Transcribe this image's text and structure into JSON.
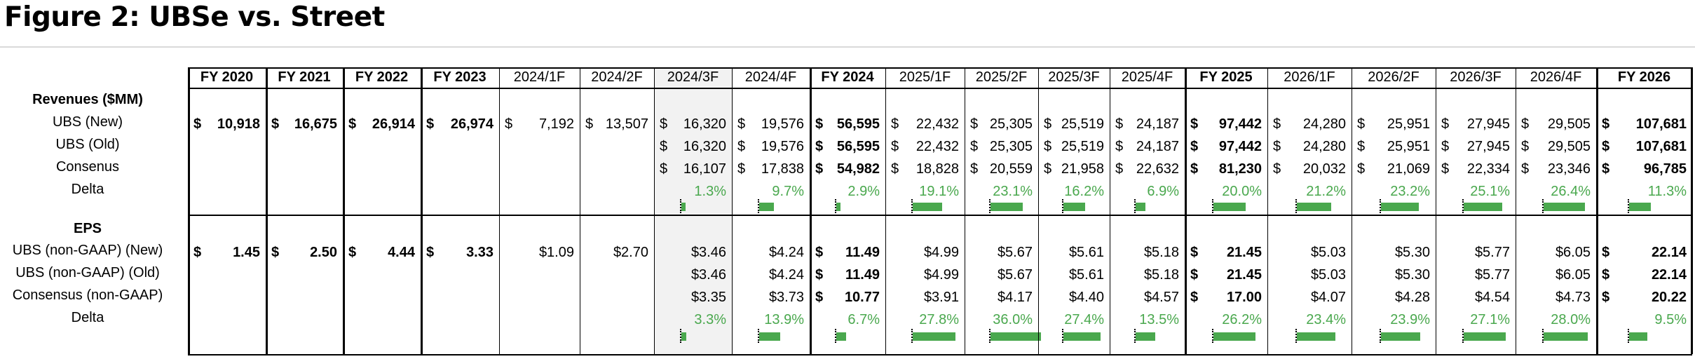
{
  "title": "Figure 2: UBSe vs. Street",
  "columns": [
    {
      "label": "FY 2020",
      "fy": true
    },
    {
      "label": "FY 2021",
      "fy": true
    },
    {
      "label": "FY 2022",
      "fy": true
    },
    {
      "label": "FY 2023",
      "fy": true
    },
    {
      "label": "2024/1F",
      "fy": false
    },
    {
      "label": "2024/2F",
      "fy": false
    },
    {
      "label": "2024/3F",
      "fy": false
    },
    {
      "label": "2024/4F",
      "fy": false
    },
    {
      "label": "FY 2024",
      "fy": true
    },
    {
      "label": "2025/1F",
      "fy": false
    },
    {
      "label": "2025/2F",
      "fy": false
    },
    {
      "label": "2025/3F",
      "fy": false
    },
    {
      "label": "2025/4F",
      "fy": false
    },
    {
      "label": "FY 2025",
      "fy": true
    },
    {
      "label": "2026/1F",
      "fy": false
    },
    {
      "label": "2026/2F",
      "fy": false
    },
    {
      "label": "2026/3F",
      "fy": false
    },
    {
      "label": "2026/4F",
      "fy": false
    },
    {
      "label": "FY 2026",
      "fy": true
    }
  ],
  "revenues": {
    "section_label": "Revenues ($MM)",
    "currency": "$",
    "rows": [
      {
        "label": "UBS (New)",
        "values": [
          "10,918",
          "16,675",
          "26,914",
          "26,974",
          "7,192",
          "13,507",
          "16,320",
          "19,576",
          "56,595",
          "22,432",
          "25,305",
          "25,519",
          "24,187",
          "97,442",
          "24,280",
          "25,951",
          "27,945",
          "29,505",
          "107,681"
        ]
      },
      {
        "label": "UBS (Old)",
        "values": [
          "",
          "",
          "",
          "",
          "",
          "",
          "16,320",
          "19,576",
          "56,595",
          "22,432",
          "25,305",
          "25,519",
          "24,187",
          "97,442",
          "24,280",
          "25,951",
          "27,945",
          "29,505",
          "107,681"
        ]
      },
      {
        "label": "Consenus",
        "values": [
          "",
          "",
          "",
          "",
          "",
          "",
          "16,107",
          "17,838",
          "54,982",
          "18,828",
          "20,559",
          "21,958",
          "22,632",
          "81,230",
          "20,032",
          "21,069",
          "22,334",
          "23,346",
          "96,785"
        ]
      }
    ],
    "delta": {
      "label": "Delta",
      "values": [
        "",
        "",
        "",
        "",
        "",
        "",
        "1.3%",
        "9.7%",
        "2.9%",
        "19.1%",
        "23.1%",
        "16.2%",
        "6.9%",
        "20.0%",
        "21.2%",
        "23.2%",
        "25.1%",
        "26.4%",
        "11.3%"
      ],
      "fractions": [
        null,
        null,
        null,
        null,
        null,
        null,
        0.013,
        0.097,
        0.029,
        0.191,
        0.231,
        0.162,
        0.069,
        0.2,
        0.212,
        0.232,
        0.251,
        0.264,
        0.113
      ]
    }
  },
  "eps": {
    "section_label": "EPS",
    "currency": "$",
    "rows": [
      {
        "label": "UBS (non-GAAP) (New)",
        "values": [
          "1.45",
          "2.50",
          "4.44",
          "3.33",
          "$1.09",
          "$2.70",
          "$3.46",
          "$4.24",
          "11.49",
          "$4.99",
          "$5.67",
          "$5.61",
          "$5.18",
          "21.45",
          "$5.03",
          "$5.30",
          "$5.77",
          "$6.05",
          "22.14"
        ]
      },
      {
        "label": "UBS (non-GAAP) (Old)",
        "values": [
          "",
          "",
          "",
          "",
          "",
          "",
          "$3.46",
          "$4.24",
          "11.49",
          "$4.99",
          "$5.67",
          "$5.61",
          "$5.18",
          "21.45",
          "$5.03",
          "$5.30",
          "$5.77",
          "$6.05",
          "22.14"
        ]
      },
      {
        "label": "Consensus (non-GAAP)",
        "values": [
          "",
          "",
          "",
          "",
          "",
          "",
          "$3.35",
          "$3.73",
          "10.77",
          "$3.91",
          "$4.17",
          "$4.40",
          "$4.57",
          "17.00",
          "$4.07",
          "$4.28",
          "$4.54",
          "$4.73",
          "20.22"
        ]
      }
    ],
    "delta": {
      "label": "Delta",
      "values": [
        "",
        "",
        "",
        "",
        "",
        "",
        "3.3%",
        "13.9%",
        "6.7%",
        "27.8%",
        "36.0%",
        "27.4%",
        "13.5%",
        "26.2%",
        "23.4%",
        "23.9%",
        "27.1%",
        "28.0%",
        "9.5%"
      ],
      "fractions": [
        null,
        null,
        null,
        null,
        null,
        null,
        0.033,
        0.139,
        0.067,
        0.278,
        0.36,
        0.274,
        0.135,
        0.262,
        0.234,
        0.239,
        0.271,
        0.28,
        0.095
      ]
    }
  },
  "colors": {
    "positive": "#4aa84e",
    "shade": "#f2f2f2",
    "rule": "#d9d9d9"
  }
}
